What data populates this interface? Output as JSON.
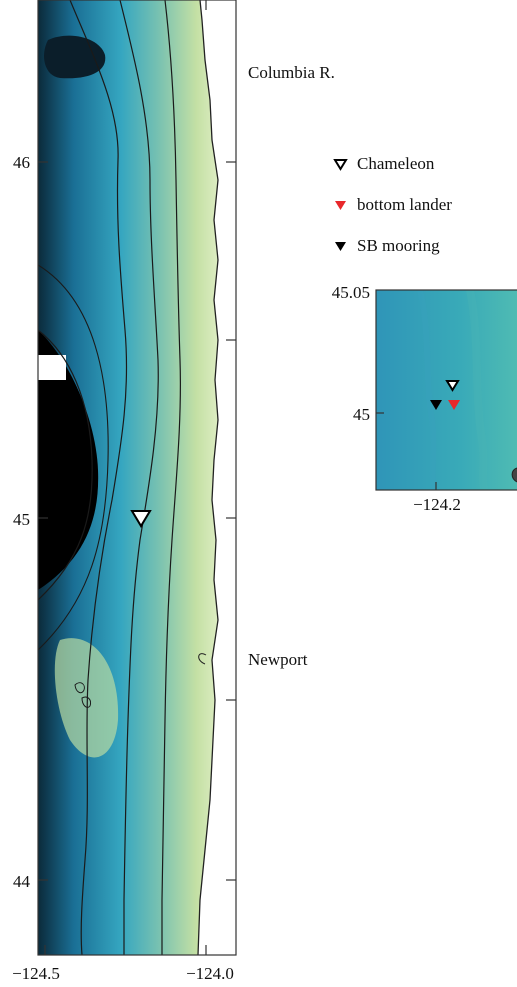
{
  "main_map": {
    "lat_ticks": [
      "46",
      "45",
      "44"
    ],
    "lon_ticks": [
      "−124.5",
      "−124.0"
    ],
    "places": {
      "columbia": "Columbia R.",
      "newport": "Newport"
    }
  },
  "legend": {
    "items": [
      {
        "label": "Chameleon",
        "symbol": "open-triangle-down",
        "color": "#000000"
      },
      {
        "label": "bottom lander",
        "symbol": "filled-triangle-down",
        "color": "#e8282b"
      },
      {
        "label": "SB mooring",
        "symbol": "filled-triangle-down",
        "color": "#000000"
      }
    ]
  },
  "inset_map": {
    "lat_ticks": [
      "45.05",
      "45"
    ],
    "lon_ticks": [
      "−124.2"
    ]
  },
  "colors": {
    "deep": "#000000",
    "mid_deep": "#1a6f95",
    "mid": "#35a6c0",
    "shelf": "#b8dba0",
    "shore": "#eef5d2",
    "land": "#ffffff",
    "contour": "#1a1a1a",
    "lander": "#e8282b"
  }
}
